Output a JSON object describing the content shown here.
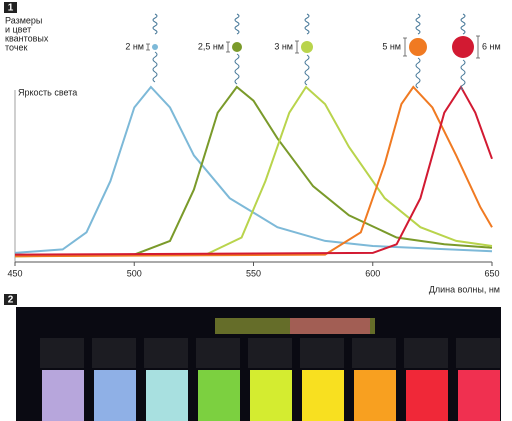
{
  "chart_data": {
    "type": "line",
    "panel_label": "1",
    "annotation_lines": [
      "Размеры",
      "и цвет",
      "квантовых",
      "точек"
    ],
    "ylabel": "Яркость света",
    "xlabel": "Длина волны, нм",
    "xlim": [
      450,
      650
    ],
    "xticks": [
      450,
      500,
      550,
      600,
      650
    ],
    "ylim": [
      0,
      100
    ],
    "series": [
      {
        "name": "2 нм",
        "color": "#7db9d8",
        "x": [
          450,
          470,
          480,
          490,
          500,
          507,
          515,
          525,
          540,
          560,
          580,
          600,
          650
        ],
        "values": [
          3,
          5,
          15,
          45,
          88,
          100,
          88,
          60,
          35,
          18,
          10,
          7,
          4
        ]
      },
      {
        "name": "2,5 нм",
        "color": "#7a9a2a",
        "x": [
          450,
          500,
          515,
          525,
          535,
          543,
          550,
          560,
          575,
          590,
          610,
          630,
          650
        ],
        "values": [
          1,
          2,
          10,
          40,
          85,
          100,
          92,
          70,
          42,
          25,
          12,
          8,
          6
        ]
      },
      {
        "name": "3 нм",
        "color": "#b9d44c",
        "x": [
          450,
          530,
          545,
          555,
          565,
          572,
          580,
          590,
          605,
          620,
          635,
          650
        ],
        "values": [
          1,
          2,
          12,
          45,
          85,
          100,
          90,
          65,
          35,
          18,
          10,
          7
        ]
      },
      {
        "name": "5 нм",
        "color": "#f07a22",
        "x": [
          450,
          580,
          595,
          605,
          612,
          617,
          625,
          635,
          645,
          650
        ],
        "values": [
          1,
          2,
          15,
          55,
          90,
          100,
          88,
          60,
          30,
          18
        ]
      },
      {
        "name": "6 нм",
        "color": "#d21a32",
        "x": [
          450,
          600,
          610,
          620,
          630,
          637,
          643,
          650
        ],
        "values": [
          2,
          3,
          8,
          35,
          85,
          100,
          85,
          58
        ]
      }
    ]
  },
  "photo": {
    "panel_label": "2"
  }
}
